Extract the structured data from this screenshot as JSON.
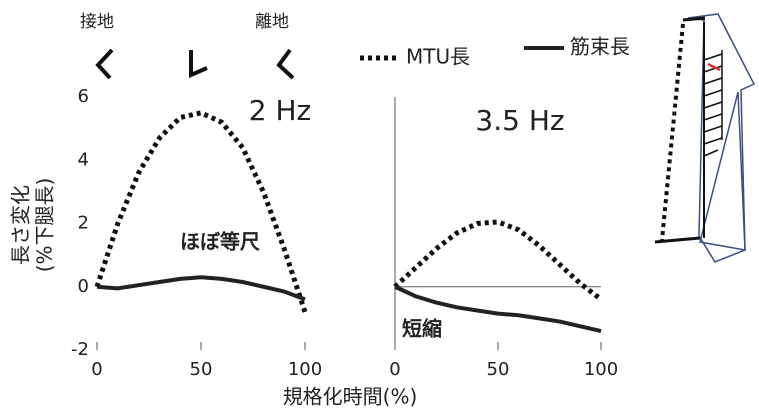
{
  "chart_data": [
    {
      "type": "line",
      "title": "2 Hz",
      "annotations": [
        "接地",
        "離地",
        "ほぼ等尺"
      ],
      "xlabel": "規格化時間(%)",
      "ylabel": [
        "長さ変化",
        "(%下腿長)"
      ],
      "x": [
        0,
        10,
        20,
        30,
        40,
        50,
        60,
        70,
        80,
        90,
        100
      ],
      "series": [
        {
          "name": "MTU長",
          "color": "#111111",
          "style": "dotted",
          "values": [
            0,
            2.0,
            3.6,
            4.7,
            5.35,
            5.5,
            5.2,
            4.4,
            3.0,
            1.2,
            -0.8
          ]
        },
        {
          "name": "筋束長",
          "color": "#222222",
          "style": "solid",
          "values": [
            0,
            -0.05,
            0.05,
            0.15,
            0.25,
            0.3,
            0.25,
            0.15,
            0,
            -0.15,
            -0.4
          ]
        }
      ],
      "xlim": [
        0,
        100
      ],
      "xticks": [
        0,
        50,
        100
      ],
      "ylim": [
        -2,
        6
      ],
      "yticks": [
        -2,
        0,
        2,
        4,
        6
      ]
    },
    {
      "type": "line",
      "title": "3.5 Hz",
      "annotations": [
        "短縮"
      ],
      "x": [
        0,
        10,
        20,
        30,
        40,
        50,
        60,
        70,
        80,
        90,
        100
      ],
      "series": [
        {
          "color": "#111111",
          "style": "dotted",
          "values": [
            0,
            0.6,
            1.2,
            1.7,
            2.0,
            2.05,
            1.8,
            1.3,
            0.7,
            0.1,
            -0.4
          ]
        },
        {
          "color": "#222222",
          "style": "solid",
          "values": [
            0,
            -0.3,
            -0.5,
            -0.65,
            -0.75,
            -0.85,
            -0.9,
            -1.0,
            -1.1,
            -1.25,
            -1.4
          ]
        }
      ],
      "xlim": [
        0,
        100
      ],
      "xticks": [
        0,
        50,
        100
      ],
      "ylim": [
        -2,
        6
      ],
      "zero_line": true,
      "axis_line": true
    }
  ]
}
